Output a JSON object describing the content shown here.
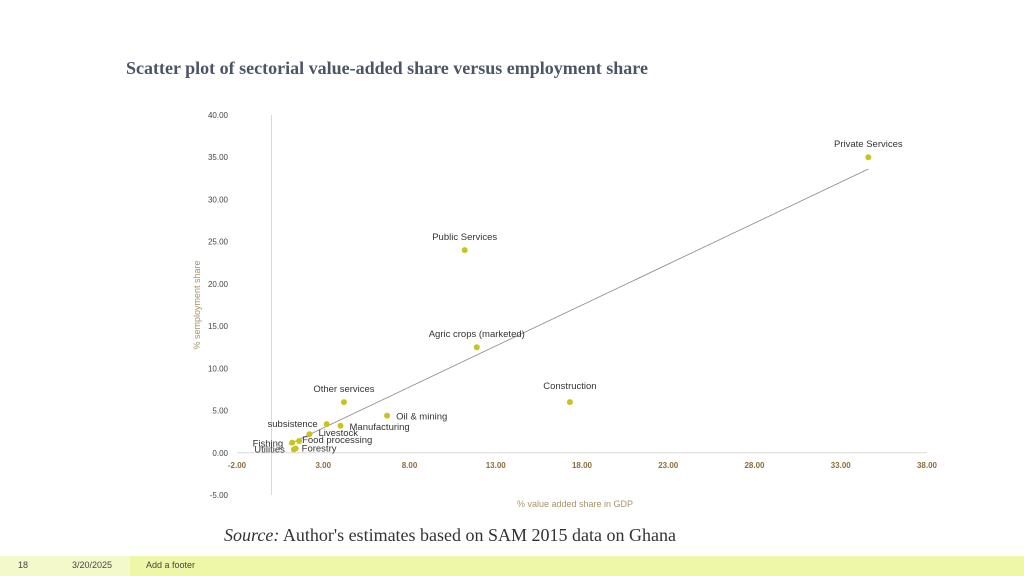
{
  "chart_data": {
    "type": "scatter",
    "title": "Scatter plot of sectorial value-added share versus employment share",
    "xlabel": "% value added share in GDP",
    "ylabel": "% semployment share",
    "xlim": [
      -2,
      38
    ],
    "ylim": [
      -5,
      40
    ],
    "x_ticks": [
      -2,
      3,
      8,
      13,
      18,
      23,
      28,
      33,
      38
    ],
    "y_ticks": [
      -5,
      0,
      5,
      10,
      15,
      20,
      25,
      30,
      35,
      40
    ],
    "points": [
      {
        "label": "Private Services",
        "x": 34.6,
        "y": 35.0
      },
      {
        "label": "Public Services",
        "x": 11.2,
        "y": 24.0
      },
      {
        "label": "Agric crops (marketed)",
        "x": 11.9,
        "y": 12.5
      },
      {
        "label": "Construction",
        "x": 17.3,
        "y": 6.0
      },
      {
        "label": "Other services",
        "x": 4.2,
        "y": 6.0
      },
      {
        "label": "Oil & mining",
        "x": 6.7,
        "y": 4.4
      },
      {
        "label": "subsistence",
        "x": 3.2,
        "y": 3.4
      },
      {
        "label": "Manufacturing",
        "x": 4.0,
        "y": 3.2
      },
      {
        "label": "Livestock",
        "x": 2.2,
        "y": 2.2
      },
      {
        "label": "Food processing",
        "x": 1.6,
        "y": 1.4
      },
      {
        "label": "Fishing",
        "x": 1.2,
        "y": 1.2
      },
      {
        "label": "Utilities",
        "x": 1.3,
        "y": 0.4
      },
      {
        "label": "Forestry",
        "x": 1.4,
        "y": 0.5
      }
    ],
    "trendline": {
      "x": [
        1.0,
        34.6
      ],
      "y": [
        1.0,
        33.6
      ]
    },
    "grid": false,
    "legend": "none",
    "point_color": "#c8c41e",
    "line_color": "#888888"
  },
  "source": {
    "prefix": "Source:",
    "text": "Author's estimates based on SAM 2015 data on Ghana"
  },
  "footer": {
    "slide_number": "18",
    "date": "3/20/2025",
    "text": "Add a footer"
  }
}
